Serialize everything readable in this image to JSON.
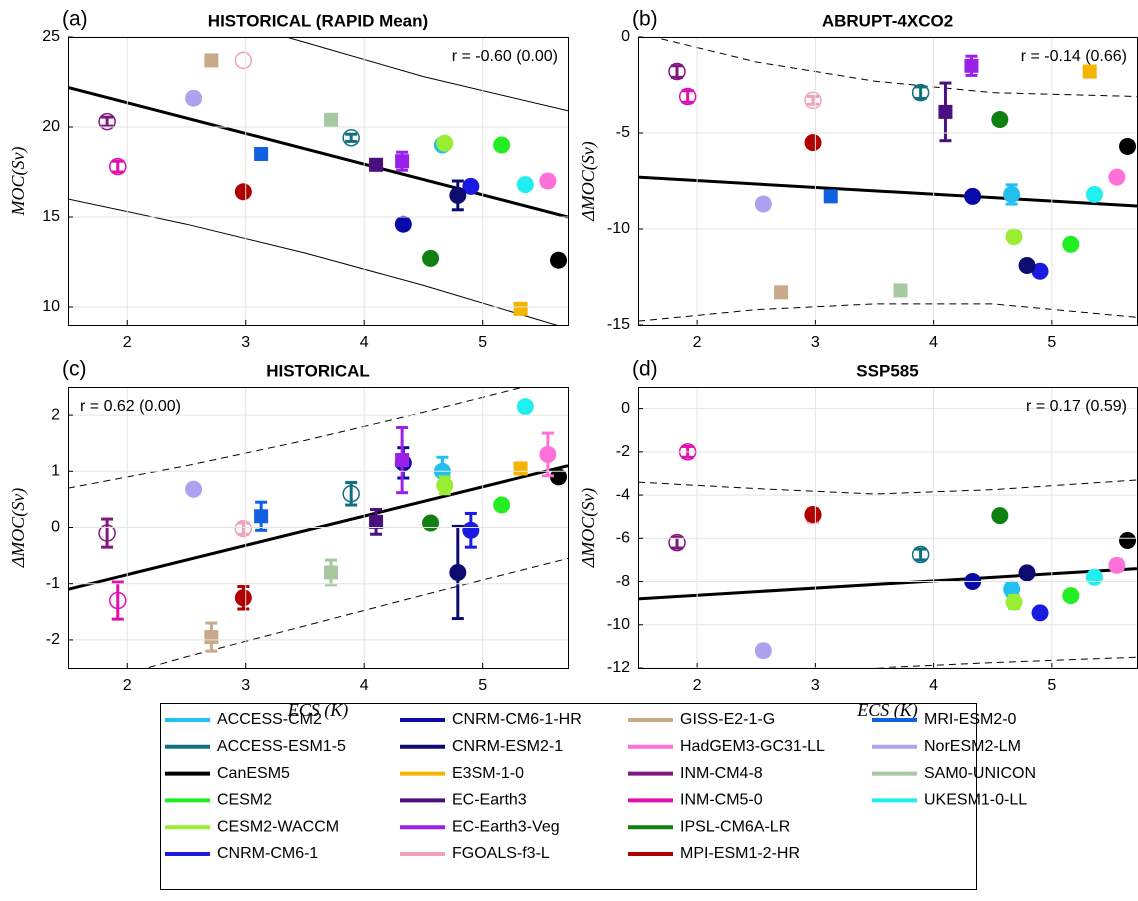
{
  "chart_data": {
    "type": "scatter",
    "xlim": [
      1.5,
      5.72
    ],
    "xticks": [
      2,
      3,
      4,
      5
    ],
    "grid": true,
    "x": [
      4.66,
      3.89,
      5.64,
      5.16,
      4.68,
      4.9,
      4.33,
      4.79,
      5.32,
      4.1,
      4.32,
      2.98,
      2.71,
      5.55,
      1.83,
      1.92,
      4.56,
      2.98,
      3.13,
      2.56,
      3.72,
      5.36
    ],
    "series": [
      {
        "name": "ACCESS-CM2",
        "color": "#22c0ee",
        "marker": "circle"
      },
      {
        "name": "ACCESS-ESM1-5",
        "color": "#11707f",
        "marker": "open"
      },
      {
        "name": "CanESM5",
        "color": "#000000",
        "marker": "circle"
      },
      {
        "name": "CESM2",
        "color": "#22ee22",
        "marker": "circle"
      },
      {
        "name": "CESM2-WACCM",
        "color": "#99ee33",
        "marker": "circle"
      },
      {
        "name": "CNRM-CM6-1",
        "color": "#1a1ae0",
        "marker": "circle"
      },
      {
        "name": "CNRM-CM6-1-HR",
        "color": "#0a0aa8",
        "marker": "circle"
      },
      {
        "name": "CNRM-ESM2-1",
        "color": "#0c0c70",
        "marker": "circle"
      },
      {
        "name": "E3SM-1-0",
        "color": "#f5b400",
        "marker": "square"
      },
      {
        "name": "EC-Earth3",
        "color": "#4a1080",
        "marker": "square"
      },
      {
        "name": "EC-Earth3-Veg",
        "color": "#9a20e8",
        "marker": "square"
      },
      {
        "name": "FGOALS-f3-L",
        "color": "#f0a0b8",
        "marker": "open"
      },
      {
        "name": "GISS-E2-1-G",
        "color": "#c8aa8a",
        "marker": "square"
      },
      {
        "name": "HadGEM3-GC31-LL",
        "color": "#ff70d8",
        "marker": "circle"
      },
      {
        "name": "INM-CM4-8",
        "color": "#801880",
        "marker": "open"
      },
      {
        "name": "INM-CM5-0",
        "color": "#e010b0",
        "marker": "open"
      },
      {
        "name": "IPSL-CM6A-LR",
        "color": "#108010",
        "marker": "circle"
      },
      {
        "name": "MPI-ESM1-2-HR",
        "color": "#b00000",
        "marker": "circle"
      },
      {
        "name": "MRI-ESM2-0",
        "color": "#1060e0",
        "marker": "square"
      },
      {
        "name": "NorESM2-LM",
        "color": "#b0a0f0",
        "marker": "circle"
      },
      {
        "name": "SAM0-UNICON",
        "color": "#a8c8a0",
        "marker": "square"
      },
      {
        "name": "UKESM1-0-LL",
        "color": "#20eef0",
        "marker": "circle"
      }
    ],
    "panels": [
      {
        "label": "(a)",
        "title": "HISTORICAL (RAPID Mean)",
        "ylabel": "MOC(Sv)",
        "annotation": "r = -0.60 (0.00)",
        "annotation_corner": "upper right",
        "ylim": [
          9,
          25
        ],
        "yticks": [
          10,
          15,
          20,
          25
        ],
        "band_style": "solid",
        "values": [
          19.0,
          19.4,
          12.6,
          19.0,
          19.1,
          16.7,
          14.6,
          16.2,
          9.9,
          17.9,
          18.1,
          23.7,
          23.7,
          17.0,
          20.3,
          17.8,
          12.7,
          16.4,
          18.5,
          21.6,
          20.4,
          16.8
        ],
        "errors": [
          0.25,
          0.2,
          null,
          null,
          null,
          null,
          null,
          0.8,
          null,
          null,
          0.5,
          null,
          null,
          0.3,
          0.25,
          0.3,
          null,
          null,
          null,
          null,
          null,
          null
        ],
        "fit_x": [
          1.5,
          5.72
        ],
        "fit_y": [
          22.2,
          15.0
        ],
        "band_x": [
          1.5,
          2.5,
          3.5,
          4.5,
          5.72
        ],
        "band_upper": [
          28.5,
          26.6,
          24.7,
          22.8,
          20.9
        ],
        "band_lower": [
          16.0,
          14.6,
          13.0,
          11.2,
          8.8
        ]
      },
      {
        "label": "(b)",
        "title": "ABRUPT-4XCO2",
        "ylabel": "ΔMOC(Sv)",
        "annotation": "r = -0.14 (0.66)",
        "annotation_corner": "upper right",
        "ylim": [
          -15,
          0
        ],
        "yticks": [
          -15,
          -10,
          -5,
          0
        ],
        "band_style": "dashed",
        "values": [
          -8.2,
          -2.9,
          -5.7,
          -10.8,
          -10.4,
          -12.2,
          -8.3,
          -11.9,
          -1.8,
          -3.9,
          -1.5,
          -3.3,
          -13.3,
          -7.3,
          -1.8,
          -3.1,
          -4.3,
          -5.5,
          -8.3,
          -8.7,
          -13.2,
          -8.2
        ],
        "errors": [
          0.5,
          0.3,
          null,
          null,
          null,
          null,
          null,
          null,
          null,
          1.5,
          0.5,
          0.2,
          null,
          null,
          0.3,
          0.3,
          null,
          null,
          null,
          null,
          null,
          null
        ],
        "fit_x": [
          1.5,
          5.72
        ],
        "fit_y": [
          -7.3,
          -8.8
        ],
        "band_x": [
          1.5,
          2.5,
          3.5,
          4.5,
          5.72
        ],
        "band_upper": [
          0.2,
          -1.3,
          -2.3,
          -2.9,
          -3.1
        ],
        "band_lower": [
          -14.8,
          -14.2,
          -13.9,
          -13.9,
          -14.6
        ]
      },
      {
        "label": "(c)",
        "title": "HISTORICAL",
        "ylabel": "ΔMOC(Sv)",
        "xlabel": "ECS (K)",
        "annotation": "r = 0.62 (0.00)",
        "annotation_corner": "upper left",
        "ylim": [
          -2.5,
          2.5
        ],
        "yticks": [
          -2,
          -1,
          0,
          1,
          2
        ],
        "band_style": "dashed",
        "values": [
          1.0,
          0.6,
          0.9,
          0.4,
          0.75,
          -0.05,
          1.15,
          -0.8,
          1.05,
          0.1,
          1.2,
          -0.02,
          -1.95,
          1.3,
          -0.1,
          -1.3,
          0.08,
          -1.25,
          0.2,
          0.68,
          -0.8,
          2.15
        ],
        "errors": [
          0.25,
          0.2,
          null,
          null,
          0.15,
          0.3,
          0.27,
          0.82,
          null,
          0.22,
          0.58,
          0.1,
          0.25,
          0.38,
          0.25,
          0.33,
          null,
          0.2,
          0.25,
          null,
          0.22,
          null
        ],
        "fit_x": [
          1.5,
          5.72
        ],
        "fit_y": [
          -1.1,
          1.1
        ],
        "band_x": [
          1.5,
          2.5,
          3.5,
          4.5,
          5.72
        ],
        "band_upper": [
          0.7,
          1.1,
          1.55,
          2.05,
          2.7
        ],
        "band_lower": [
          -2.9,
          -2.3,
          -1.75,
          -1.2,
          -0.55
        ]
      },
      {
        "label": "(d)",
        "title": "SSP585",
        "ylabel": "ΔMOC(Sv)",
        "xlabel": "ECS (K)",
        "annotation": "r = 0.17 (0.59)",
        "annotation_corner": "upper right",
        "ylim": [
          -12,
          1
        ],
        "yticks": [
          -12,
          -10,
          -8,
          -6,
          -4,
          -2,
          0
        ],
        "band_style": "dashed",
        "values": [
          -8.35,
          -6.75,
          -6.1,
          -8.65,
          -8.95,
          -9.45,
          -8.0,
          -7.6,
          null,
          null,
          null,
          -4.95,
          null,
          -7.25,
          -6.2,
          -2.0,
          -4.95,
          -4.9,
          null,
          -11.2,
          null,
          -7.8
        ],
        "errors": [
          0.3,
          0.25,
          null,
          null,
          0.3,
          null,
          null,
          null,
          null,
          null,
          null,
          0.3,
          null,
          0.25,
          0.25,
          0.25,
          null,
          0.25,
          null,
          0.25,
          null,
          null
        ],
        "fit_x": [
          1.5,
          5.72
        ],
        "fit_y": [
          -8.8,
          -7.4
        ],
        "band_x": [
          1.5,
          2.5,
          3.5,
          4.5,
          5.72
        ],
        "band_upper": [
          -3.4,
          -3.7,
          -3.95,
          -3.75,
          -3.3
        ],
        "band_lower": [
          -13.0,
          -12.6,
          -12.0,
          -11.75,
          -11.5
        ]
      }
    ]
  }
}
